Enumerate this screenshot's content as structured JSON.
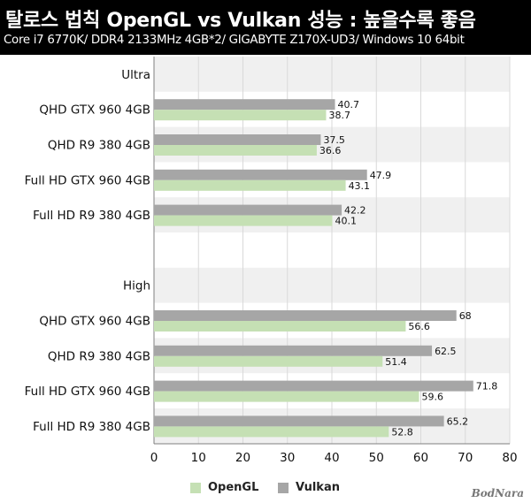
{
  "header": {
    "title": "탈로스 법칙 OpenGL vs Vulkan 성능 : 높을수록 좋음",
    "subtitle": "Core i7 6770K/ DDR4 2133MHz 4GB*2/ GIGABYTE Z170X-UD3/ Windows 10 64bit"
  },
  "chart_data": {
    "type": "bar",
    "orientation": "horizontal",
    "xlim": [
      0,
      80
    ],
    "xticks": [
      0,
      10,
      20,
      30,
      40,
      50,
      60,
      70,
      80
    ],
    "grid": true,
    "legend_position": "bottom",
    "groups": [
      {
        "label": "Ultra",
        "categories": [
          "QHD GTX 960 4GB",
          "QHD R9 380 4GB",
          "Full HD GTX 960 4GB",
          "Full HD R9 380 4GB"
        ],
        "series": [
          {
            "name": "Vulkan",
            "values": [
              40.7,
              37.5,
              47.9,
              42.2
            ]
          },
          {
            "name": "OpenGL",
            "values": [
              38.7,
              36.6,
              43.1,
              40.1
            ]
          }
        ]
      },
      {
        "label": "High",
        "categories": [
          "QHD GTX 960 4GB",
          "QHD R9 380 4GB",
          "Full HD GTX 960 4GB",
          "Full HD R9 380 4GB"
        ],
        "series": [
          {
            "name": "Vulkan",
            "values": [
              68,
              62.5,
              71.8,
              65.2
            ]
          },
          {
            "name": "OpenGL",
            "values": [
              56.6,
              51.4,
              59.6,
              52.8
            ]
          }
        ]
      }
    ],
    "colors": {
      "OpenGL": "#c5e0b4",
      "Vulkan": "#a6a6a6"
    }
  },
  "legend": {
    "opengl_label": "OpenGL",
    "vulkan_label": "Vulkan"
  },
  "watermark": "BodNara"
}
